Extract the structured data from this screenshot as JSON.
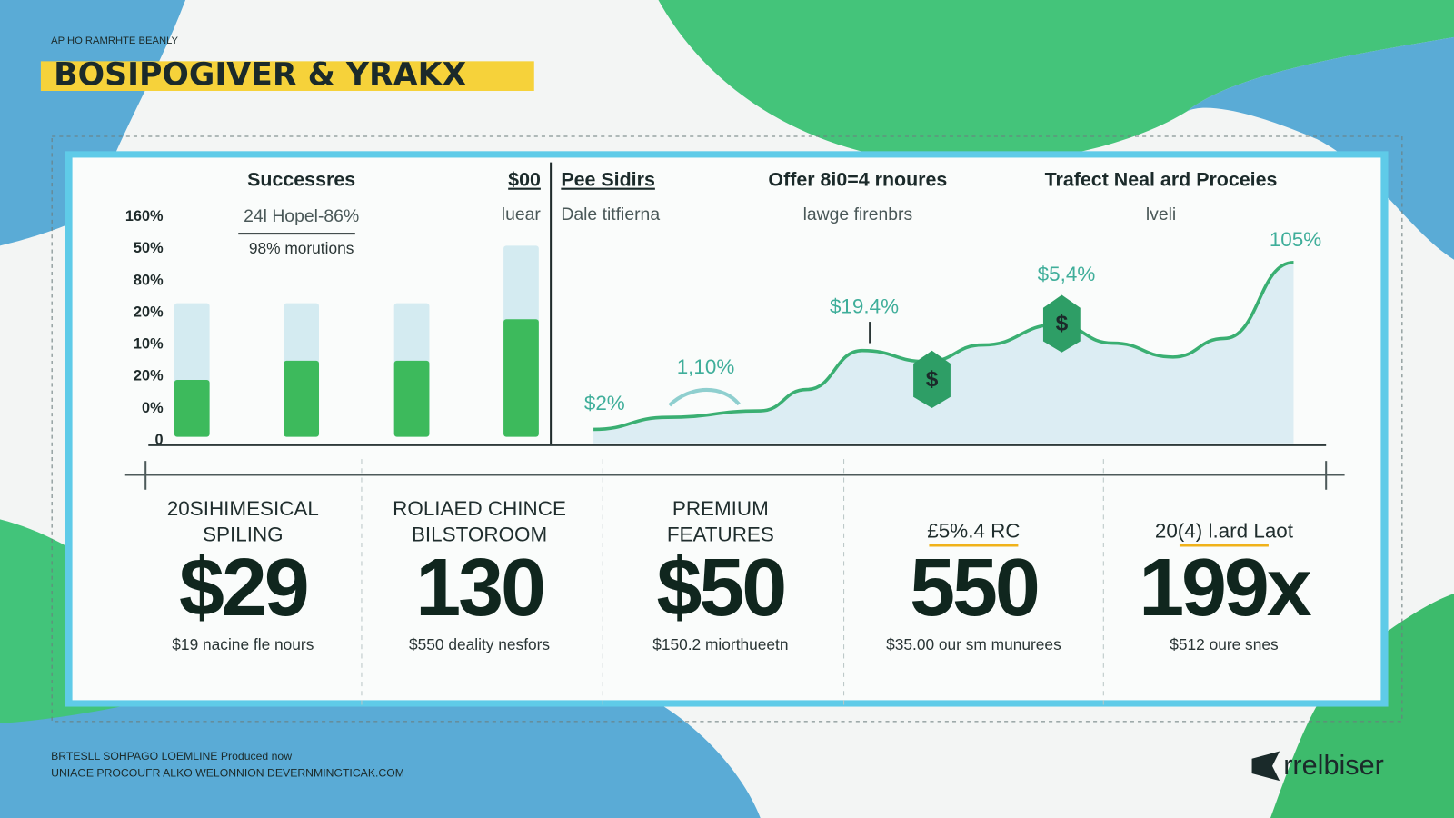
{
  "header": {
    "kicker": "AP HO RAMRHTE BEANLY",
    "title": "BOSIPOGIVER & YRAKX"
  },
  "chart_data": [
    {
      "type": "bar",
      "title": "Successres",
      "subtitle": "24l Hopel-86%",
      "note": "98% morutions",
      "categories": [
        null,
        null,
        null,
        null
      ],
      "series": [
        {
          "color": "#d4ebf1",
          "values": [
            4.3,
            4.3,
            4.3,
            6.1
          ]
        },
        {
          "color": "#3dba5c",
          "values": [
            1.9,
            2.5,
            2.5,
            3.8
          ]
        }
      ],
      "ylim": [
        0,
        7
      ],
      "yticks": [
        0,
        {
          "value": 1,
          "label": "0%"
        },
        {
          "value": 2,
          "label": "20%"
        },
        {
          "value": 3,
          "label": "10%"
        },
        {
          "value": 4,
          "label": "20%"
        },
        {
          "value": 5,
          "label": "80%"
        },
        {
          "value": 6,
          "label": "50%"
        },
        {
          "value": 7,
          "label": "160%"
        }
      ],
      "side_title": "$00",
      "side_subtitle": "luear"
    },
    {
      "type": "line",
      "titles": [
        "Pee Sidirs",
        "Offer 8i0=4 rnoures",
        "Trafect Neal ard Proceies"
      ],
      "subtitles": [
        "Dale titfierna",
        "lawge firenbrs",
        "lveli"
      ],
      "x": [
        0,
        8,
        18,
        23,
        29,
        36,
        42,
        50,
        56,
        62.5,
        68,
        75.5
      ],
      "values": [
        7.5,
        14,
        17.5,
        29,
        50,
        44,
        53,
        64,
        54,
        46.5,
        56.5,
        97.5
      ],
      "color": "#3aaf72",
      "area_color": "#dcedf3",
      "xlim": [
        0,
        78
      ],
      "ylim": [
        0,
        100
      ],
      "annotations": [
        "$2%",
        "1,10%",
        "$19.4%",
        "$5,4%",
        "105%"
      ]
    }
  ],
  "cards": [
    {
      "label": [
        "20SIHIMESICAL",
        "SPILING"
      ],
      "value": "$29",
      "note": "$19 nacine fle nours"
    },
    {
      "label": [
        "ROLIAED CHINCE",
        "BILSTOROOM"
      ],
      "value": "130",
      "note": "$550 deality nesfors"
    },
    {
      "label": [
        "PREMIUM",
        "FEATURES"
      ],
      "value": "$50",
      "note": "$150.2 miorthueetn"
    },
    {
      "label": [
        "£5%.4 RC"
      ],
      "value": "550",
      "note": "$35.00 our sm munurees"
    },
    {
      "label": [
        "20(4) l.ard Laot"
      ],
      "value": "199x",
      "note": "$512 oure snes"
    }
  ],
  "footer": {
    "lines": [
      "BRTESLL SOHPAGO LOEMLINE Produced now",
      "UNIAGE PROCOUFR ALKO WELONNION DEVERNMINGTICAK.COM"
    ],
    "brand": "rrelbiser"
  }
}
